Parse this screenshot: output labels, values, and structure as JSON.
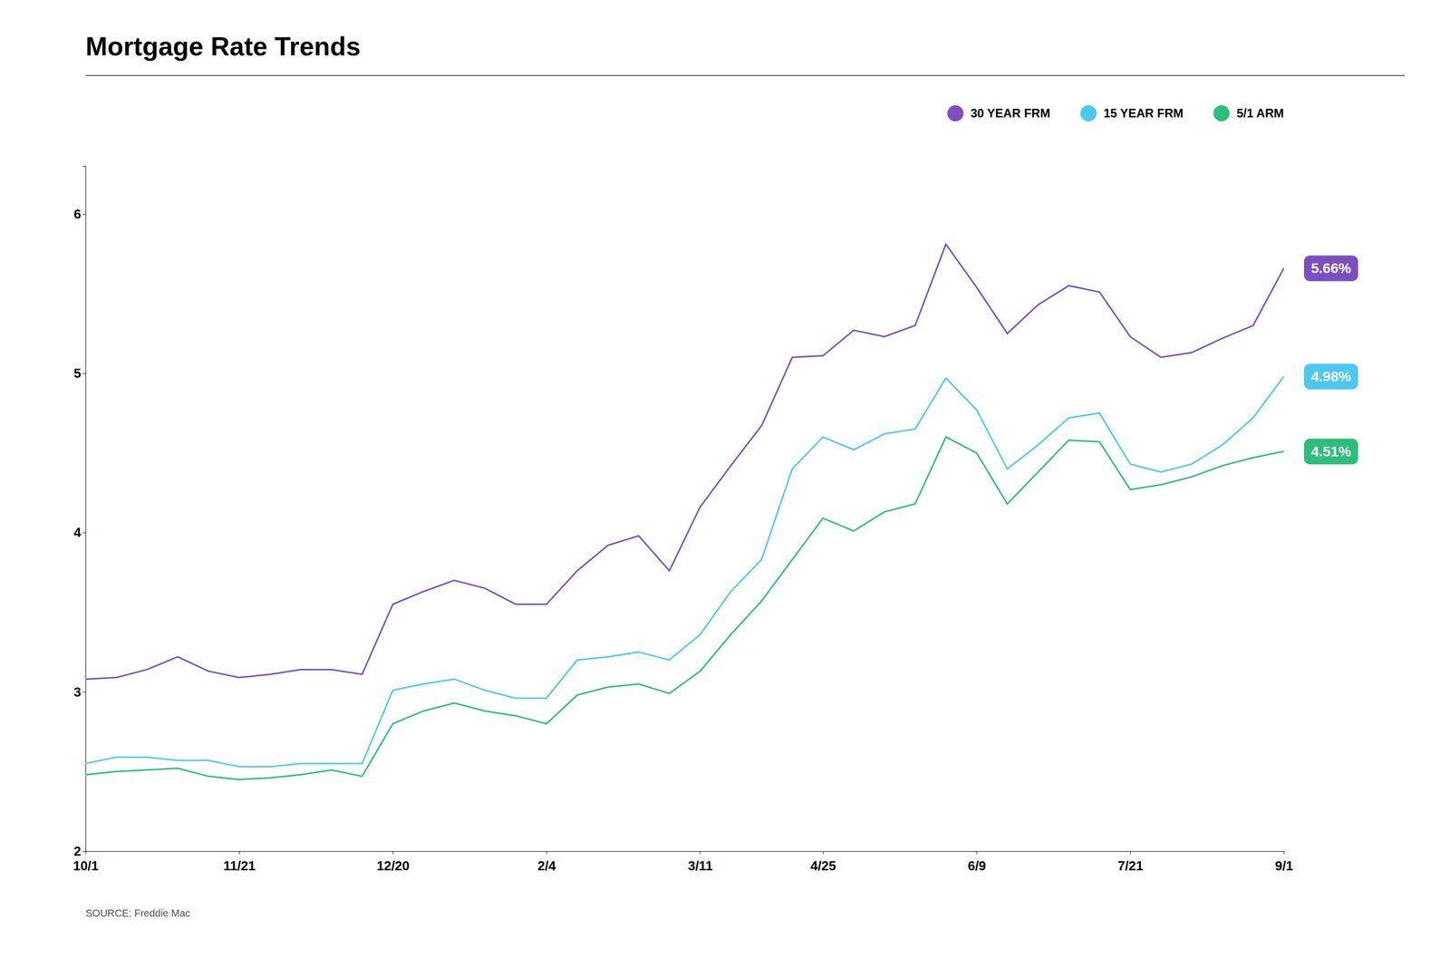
{
  "chart_data": {
    "type": "line",
    "title": "Mortgage Rate Trends",
    "categories": [
      "10/1",
      null,
      null,
      null,
      null,
      "11/21",
      null,
      null,
      null,
      null,
      "12/20",
      null,
      null,
      null,
      null,
      "2/4",
      null,
      null,
      null,
      null,
      "3/11",
      null,
      null,
      null,
      "4/25",
      null,
      null,
      null,
      null,
      "6/9",
      null,
      null,
      null,
      null,
      "7/21",
      null,
      null,
      null,
      null,
      "9/1"
    ],
    "series": [
      {
        "name": "30 YEAR FRM",
        "color": "#7B4FBF",
        "values": [
          3.08,
          3.09,
          3.14,
          3.22,
          3.13,
          3.09,
          3.11,
          3.14,
          3.14,
          3.11,
          3.55,
          3.63,
          3.7,
          3.65,
          3.55,
          3.55,
          3.76,
          3.92,
          3.98,
          3.76,
          4.16,
          4.42,
          4.67,
          5.1,
          5.11,
          5.27,
          5.23,
          5.3,
          5.81,
          5.54,
          5.25,
          5.43,
          5.55,
          5.51,
          5.23,
          5.1,
          5.13,
          5.22,
          5.3,
          5.66
        ],
        "value_labels": [
          null,
          null,
          null,
          null,
          null,
          null,
          null,
          null,
          null,
          null,
          null,
          null,
          null,
          null,
          null,
          null,
          null,
          null,
          null,
          null,
          null,
          null,
          null,
          null,
          null,
          null,
          null,
          null,
          null,
          null,
          null,
          null,
          null,
          null,
          null,
          null,
          null,
          null,
          null,
          "5.66%"
        ]
      },
      {
        "name": "15 YEAR FRM",
        "color": "#4DC8F0",
        "values": [
          2.55,
          2.59,
          2.59,
          2.57,
          2.57,
          2.53,
          2.53,
          2.55,
          2.55,
          2.55,
          3.01,
          3.05,
          3.08,
          3.01,
          2.96,
          2.96,
          3.2,
          3.22,
          3.25,
          3.2,
          3.36,
          3.63,
          3.83,
          4.4,
          4.6,
          4.52,
          4.62,
          4.65,
          4.97,
          4.77,
          4.4,
          4.55,
          4.72,
          4.75,
          4.43,
          4.38,
          4.43,
          4.55,
          4.72,
          4.98
        ],
        "value_labels": [
          null,
          null,
          null,
          null,
          null,
          null,
          null,
          null,
          null,
          null,
          null,
          null,
          null,
          null,
          null,
          null,
          null,
          null,
          null,
          null,
          null,
          null,
          null,
          null,
          null,
          null,
          null,
          null,
          null,
          null,
          null,
          null,
          null,
          null,
          null,
          null,
          null,
          null,
          null,
          "4.98%"
        ]
      },
      {
        "name": "5/1 ARM",
        "color": "#2DBD7D",
        "values": [
          2.48,
          2.5,
          2.51,
          2.52,
          2.47,
          2.45,
          2.46,
          2.48,
          2.51,
          2.47,
          2.8,
          2.88,
          2.93,
          2.88,
          2.85,
          2.8,
          2.98,
          3.03,
          3.05,
          2.99,
          3.13,
          3.36,
          3.57,
          3.83,
          4.09,
          4.01,
          4.13,
          4.18,
          4.6,
          4.5,
          4.18,
          4.38,
          4.58,
          4.57,
          4.27,
          4.3,
          4.35,
          4.42,
          4.47,
          4.51
        ],
        "value_labels": [
          null,
          null,
          null,
          null,
          null,
          null,
          null,
          null,
          null,
          null,
          null,
          null,
          null,
          null,
          null,
          null,
          null,
          null,
          null,
          null,
          null,
          null,
          null,
          null,
          null,
          null,
          null,
          null,
          null,
          null,
          null,
          null,
          null,
          null,
          null,
          null,
          null,
          null,
          null,
          "4.51%"
        ]
      }
    ],
    "ylim": [
      2,
      6.3
    ],
    "yticks": [
      2,
      3,
      4,
      5,
      6
    ],
    "grid": false,
    "legend": "top",
    "data_labels": true,
    "annotations": [
      "SOURCE: Freddie Mac"
    ]
  }
}
